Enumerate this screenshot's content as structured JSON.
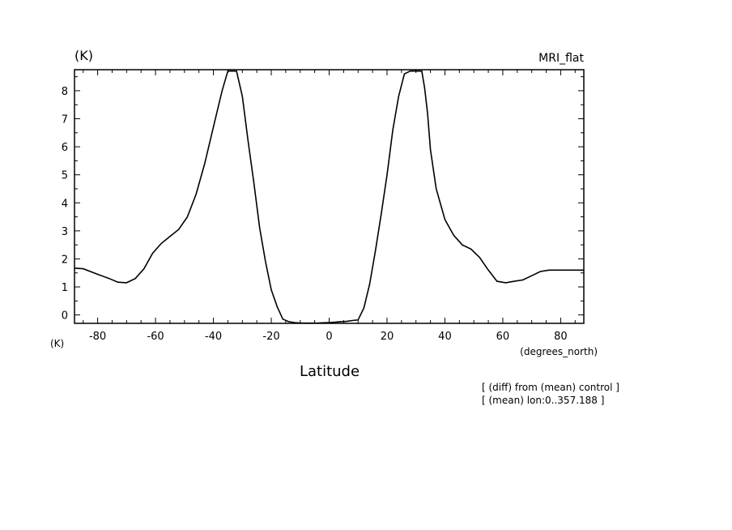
{
  "header": {
    "unit_label": "(K)",
    "model_label": "MRI_flat"
  },
  "footer": {
    "left_unit": "(K)",
    "x_unit": "(degrees_north)",
    "x_title": "Latitude",
    "note_1": "[ (diff) from (mean) control ]",
    "note_2": "[ (mean) lon:0..357.188 ]"
  },
  "chart_data": {
    "type": "line",
    "title": "",
    "xlabel": "Latitude",
    "ylabel": "(K)",
    "xlim": [
      -88,
      88
    ],
    "ylim": [
      -0.3,
      8.75
    ],
    "x_ticks": [
      -80,
      -60,
      -40,
      -20,
      0,
      20,
      40,
      60,
      80
    ],
    "x_tick_labels": [
      "-80",
      "-60",
      "-40",
      "-20",
      "0",
      "20",
      "40",
      "60",
      "80"
    ],
    "y_ticks": [
      0,
      1,
      2,
      3,
      4,
      5,
      6,
      7,
      8
    ],
    "y_tick_labels": [
      "0",
      "1",
      "2",
      "3",
      "4",
      "5",
      "6",
      "7",
      "8"
    ],
    "grid": false,
    "series": [
      {
        "x": [
          -88,
          -85,
          -80,
          -76,
          -73,
          -70,
          -67,
          -64,
          -61,
          -58,
          -55,
          -52,
          -49,
          -46,
          -43,
          -40,
          -37,
          -35,
          -33,
          -32,
          -30,
          -28,
          -26,
          -24,
          -22,
          -20,
          -18,
          -16,
          -14,
          -12,
          -10,
          -8,
          -6,
          -4,
          -2,
          0,
          2,
          4,
          6,
          8,
          10,
          12,
          14,
          16,
          18,
          20,
          22,
          24,
          26,
          28,
          30,
          32,
          33,
          34,
          35,
          37,
          40,
          43,
          46,
          49,
          52,
          55,
          58,
          61,
          64,
          67,
          70,
          73,
          76,
          80,
          85,
          88
        ],
        "y": [
          1.67,
          1.65,
          1.45,
          1.3,
          1.17,
          1.15,
          1.3,
          1.65,
          2.2,
          2.55,
          2.8,
          3.05,
          3.5,
          4.3,
          5.4,
          6.7,
          8.0,
          8.7,
          8.7,
          8.7,
          7.8,
          6.2,
          4.7,
          3.1,
          1.9,
          0.9,
          0.3,
          -0.15,
          -0.24,
          -0.27,
          -0.29,
          -0.29,
          -0.29,
          -0.29,
          -0.28,
          -0.27,
          -0.26,
          -0.24,
          -0.23,
          -0.2,
          -0.18,
          0.25,
          1.1,
          2.3,
          3.6,
          5.0,
          6.6,
          7.8,
          8.6,
          8.7,
          8.7,
          8.7,
          8.1,
          7.2,
          5.9,
          4.5,
          3.4,
          2.85,
          2.5,
          2.35,
          2.05,
          1.6,
          1.2,
          1.15,
          1.2,
          1.25,
          1.4,
          1.55,
          1.6,
          1.6,
          1.6,
          1.6
        ]
      }
    ]
  }
}
